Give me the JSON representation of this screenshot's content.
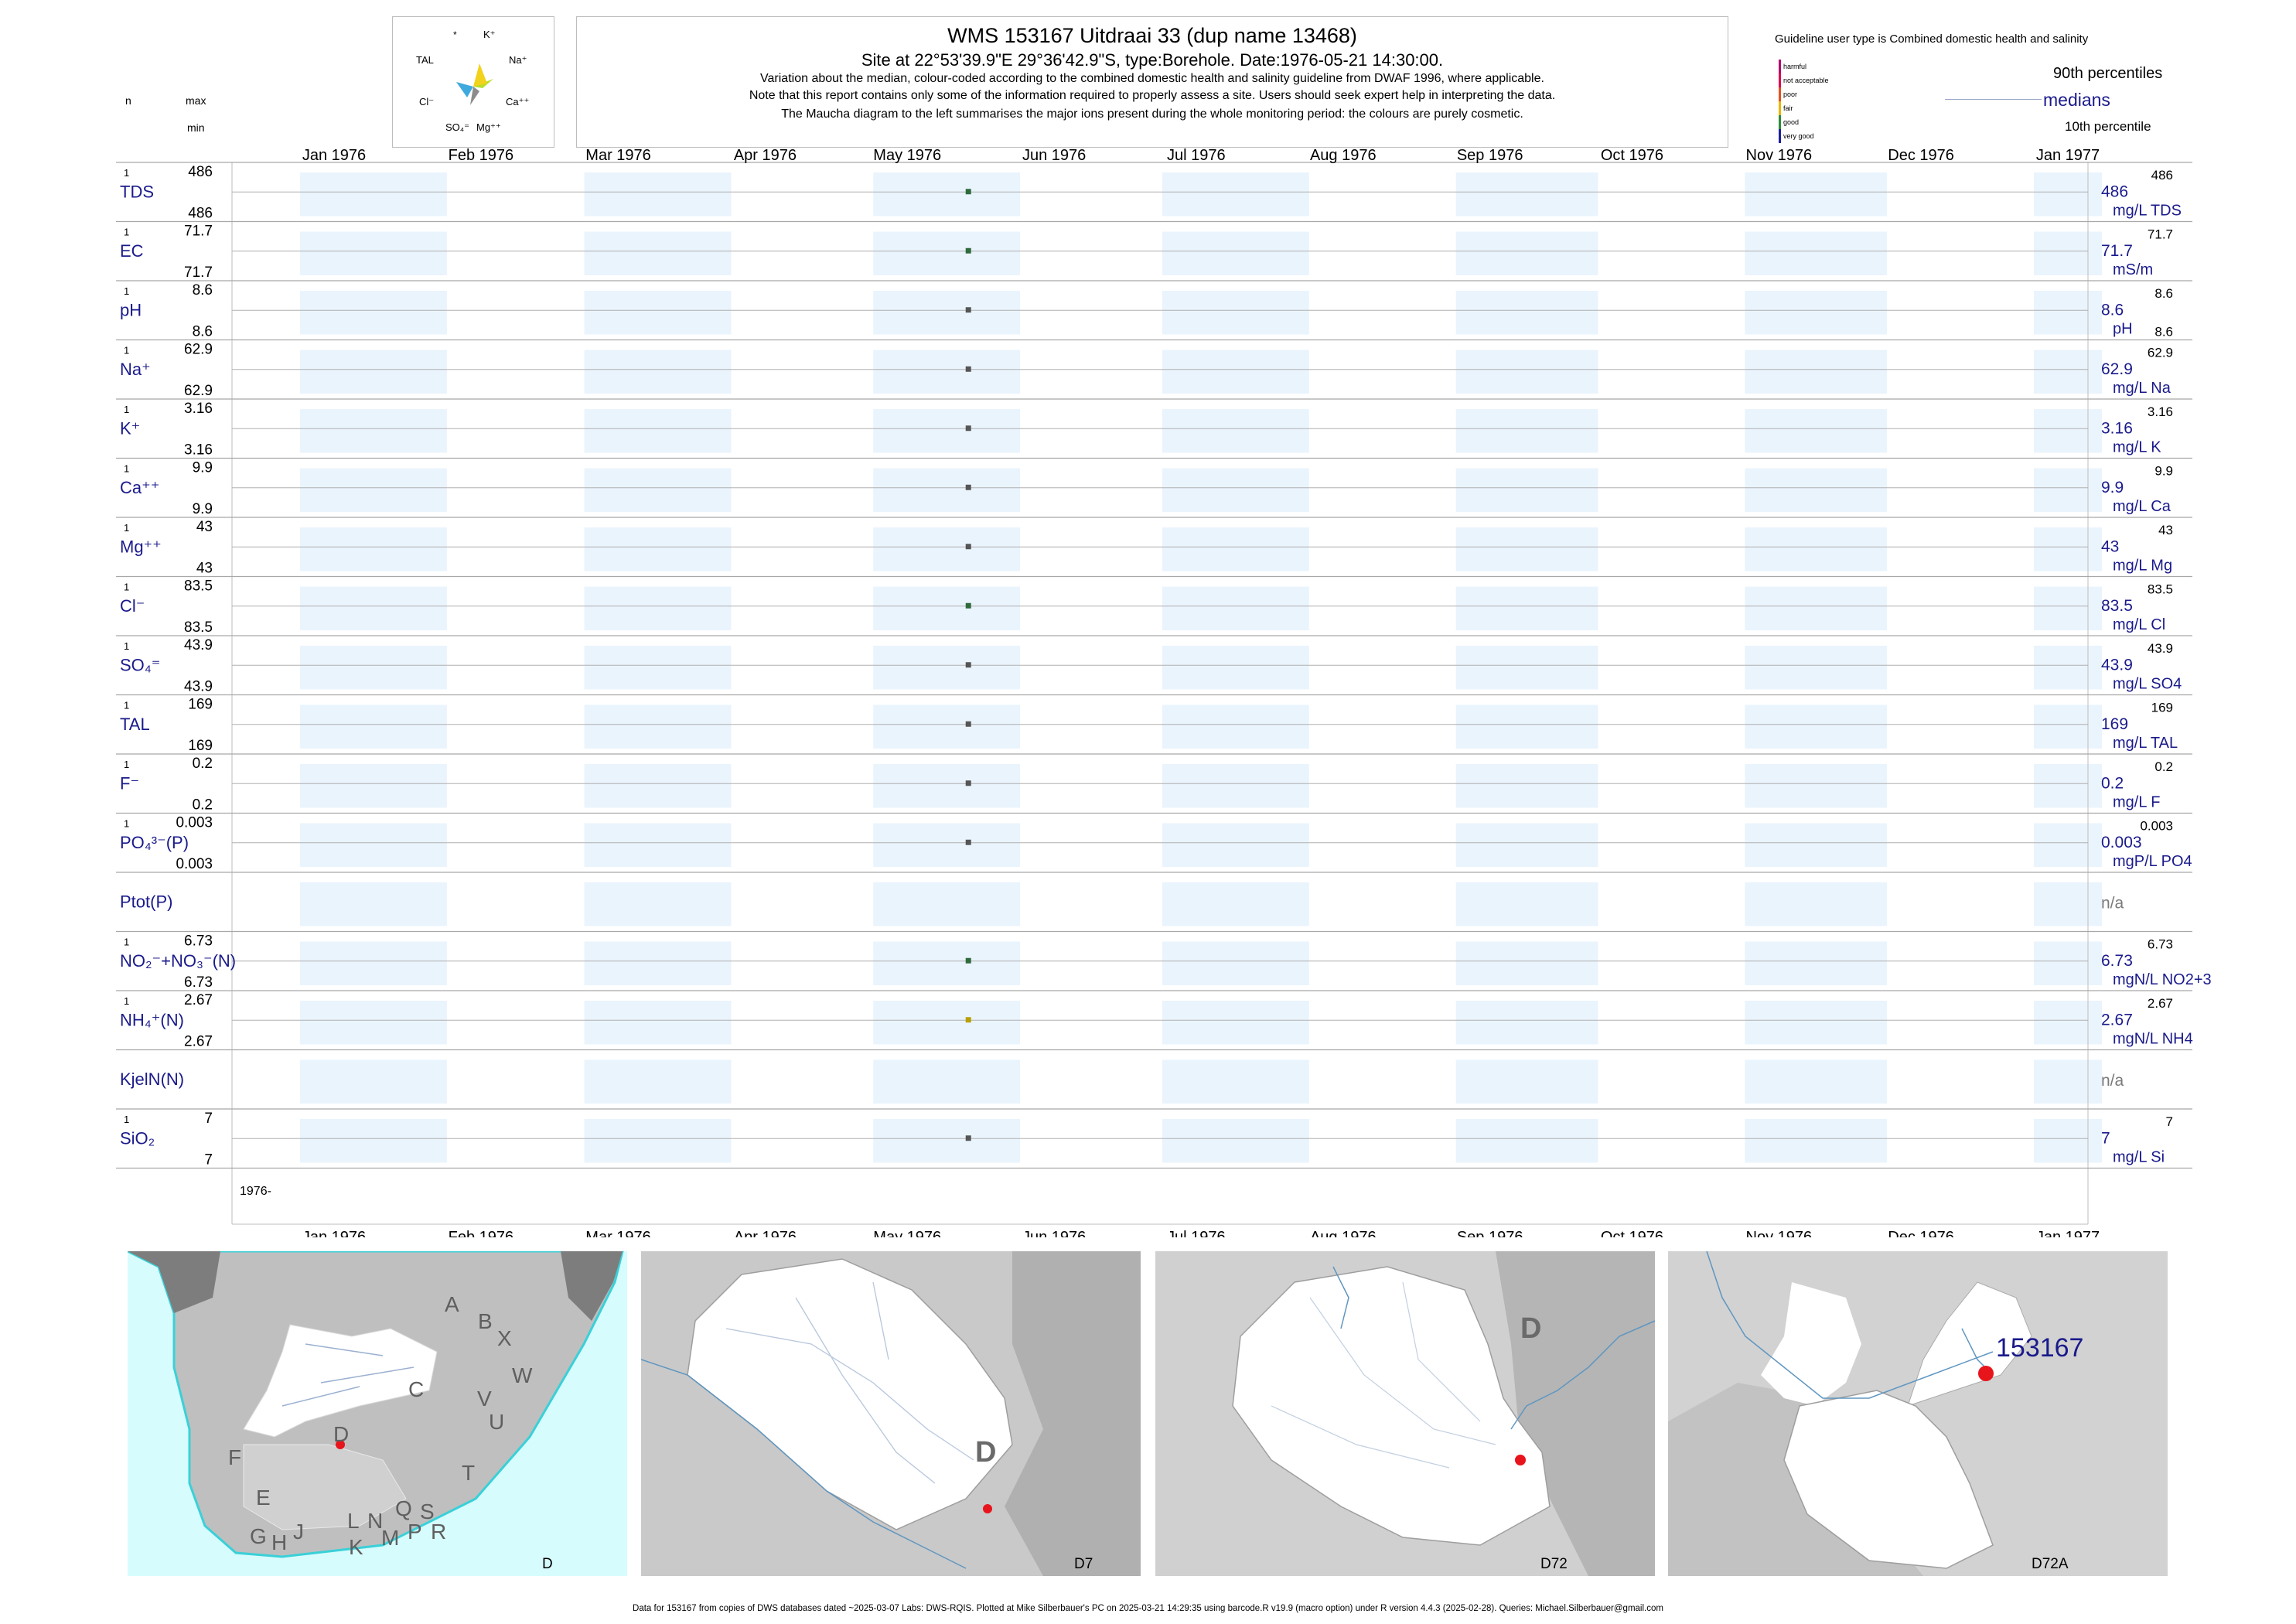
{
  "title": {
    "line1": "WMS 153167  Uitdraai 33 (dup name 13468)",
    "line2": "Site at 22°53'39.9\"E 29°36'42.9\"S, type:Borehole. Date:1976-05-21 14:30:00.",
    "line3": "Variation about the median,  colour-coded according to the combined domestic health and salinity guideline from DWAF 1996, where applicable.",
    "line4": "Note that this report contains only some of the information required to properly assess a site. Users should seek expert help in interpreting the data.",
    "line5": "The Maucha diagram to the left summarises the major ions present during the whole monitoring period: the colours are purely cosmetic."
  },
  "maucha": {
    "labels": [
      "*",
      "K⁺",
      "Na⁺",
      "Ca⁺⁺",
      "Mg⁺⁺",
      "SO₄⁼",
      "Cl⁻",
      "TAL"
    ],
    "colors": [
      "#3fa9dd",
      "#b6e02b",
      "#f2d21a",
      "#8c8c8c",
      "#66e0e0"
    ]
  },
  "left_header": {
    "n": "n",
    "max": "max",
    "min": "min"
  },
  "legend": {
    "title": "Guideline user type is Combined domestic health and salinity",
    "categories": [
      {
        "label": "harmful",
        "color": "#b5006e"
      },
      {
        "label": "not acceptable",
        "color": "#e0004e"
      },
      {
        "label": "poor",
        "color": "#e8501c"
      },
      {
        "label": "fair",
        "color": "#e8b800"
      },
      {
        "label": "good",
        "color": "#2e8b3c"
      },
      {
        "label": "very good",
        "color": "#1d1e9c"
      }
    ],
    "p90": "90th percentiles",
    "medians": "medians",
    "p10": "10th percentile"
  },
  "chart_data": {
    "type": "scatter",
    "x_axis": {
      "ticks": [
        "Jan 1976",
        "Feb 1976",
        "Mar 1976",
        "Apr 1976",
        "May 1976",
        "Jun 1976",
        "Jul 1976",
        "Aug 1976",
        "Sep 1976",
        "Oct 1976",
        "Nov 1976",
        "Dec 1976",
        "Jan 1977"
      ],
      "range": [
        "1976-01-01",
        "1977-01-01"
      ],
      "bottom_label": "1976-"
    },
    "sample_date": "1976-05-21",
    "variables": [
      {
        "name": "TDS",
        "n": "1",
        "max": "486",
        "min": "486",
        "value": 486,
        "median": "486",
        "p90": "486",
        "unit": "mg/L TDS",
        "color": "#2e6b3c"
      },
      {
        "name": "EC",
        "n": "1",
        "max": "71.7",
        "min": "71.7",
        "value": 71.7,
        "median": "71.7",
        "p90": "71.7",
        "unit": "mS/m",
        "color": "#2e6b3c"
      },
      {
        "name": "pH",
        "n": "1",
        "max": "8.6",
        "min": "8.6",
        "value": 8.6,
        "median": "8.6",
        "p90": "8.6",
        "p10": "8.6",
        "unit": "pH",
        "color": "#555555"
      },
      {
        "name": "Na⁺",
        "n": "1",
        "max": "62.9",
        "min": "62.9",
        "value": 62.9,
        "median": "62.9",
        "p90": "62.9",
        "unit": "mg/L Na",
        "color": "#555555"
      },
      {
        "name": "K⁺",
        "n": "1",
        "max": "3.16",
        "min": "3.16",
        "value": 3.16,
        "median": "3.16",
        "p90": "3.16",
        "unit": "mg/L K",
        "color": "#555555"
      },
      {
        "name": "Ca⁺⁺",
        "n": "1",
        "max": "9.9",
        "min": "9.9",
        "value": 9.9,
        "median": "9.9",
        "p90": "9.9",
        "unit": "mg/L Ca",
        "color": "#555555"
      },
      {
        "name": "Mg⁺⁺",
        "n": "1",
        "max": "43",
        "min": "43",
        "value": 43,
        "median": "43",
        "p90": "43",
        "unit": "mg/L Mg",
        "color": "#555555"
      },
      {
        "name": "Cl⁻",
        "n": "1",
        "max": "83.5",
        "min": "83.5",
        "value": 83.5,
        "median": "83.5",
        "p90": "83.5",
        "unit": "mg/L Cl",
        "color": "#2e6b3c"
      },
      {
        "name": "SO₄⁼",
        "n": "1",
        "max": "43.9",
        "min": "43.9",
        "value": 43.9,
        "median": "43.9",
        "p90": "43.9",
        "unit": "mg/L SO4",
        "color": "#555555"
      },
      {
        "name": "TAL",
        "n": "1",
        "max": "169",
        "min": "169",
        "value": 169,
        "median": "169",
        "p90": "169",
        "unit": "mg/L TAL",
        "color": "#555555"
      },
      {
        "name": "F⁻",
        "n": "1",
        "max": "0.2",
        "min": "0.2",
        "value": 0.2,
        "median": "0.2",
        "p90": "0.2",
        "unit": "mg/L F",
        "color": "#555555"
      },
      {
        "name": "PO₄³⁻(P)",
        "n": "1",
        "max": "0.003",
        "min": "0.003",
        "value": 0.003,
        "median": "0.003",
        "p90": "0.003",
        "unit": "mgP/L PO4",
        "color": "#555555"
      },
      {
        "name": "Ptot(P)",
        "n": "",
        "max": "",
        "min": "",
        "value": null,
        "median": "n/a",
        "p90": "",
        "unit": "",
        "color": "#555555"
      },
      {
        "name": "NO₂⁻+NO₃⁻(N)",
        "n": "1",
        "max": "6.73",
        "min": "6.73",
        "value": 6.73,
        "median": "6.73",
        "p90": "6.73",
        "unit": "mgN/L NO2+3",
        "color": "#2e6b3c"
      },
      {
        "name": "NH₄⁺(N)",
        "n": "1",
        "max": "2.67",
        "min": "2.67",
        "value": 2.67,
        "median": "2.67",
        "p90": "2.67",
        "unit": "mgN/L NH4",
        "color": "#b8a000"
      },
      {
        "name": "KjelN(N)",
        "n": "",
        "max": "",
        "min": "",
        "value": null,
        "median": "n/a",
        "p90": "",
        "unit": "",
        "color": "#555555"
      },
      {
        "name": "SiO₂",
        "n": "1",
        "max": "7",
        "min": "7",
        "value": 7,
        "median": "7",
        "p90": "7",
        "unit": "mg/L Si",
        "color": "#555555"
      }
    ]
  },
  "maps": {
    "map1": {
      "labels": [
        "A",
        "B",
        "X",
        "W",
        "C",
        "V",
        "U",
        "T",
        "D",
        "F",
        "E",
        "G",
        "H",
        "J",
        "K",
        "L",
        "N",
        "M",
        "Q",
        "P",
        "S",
        "R"
      ],
      "caption": "D"
    },
    "map2": {
      "label": "D",
      "caption": "D7"
    },
    "map3": {
      "label": "D",
      "caption": "D72"
    },
    "map4": {
      "site": "153167",
      "caption": "D72A"
    }
  },
  "footer": "Data for 153167 from copies of DWS databases dated ~2025-03-07 Labs: DWS-RQIS. Plotted at Mike Silberbauer's PC on 2025-03-21 14:29:35 using barcode.R v19.9 (macro option) under R version 4.4.3 (2025-02-28). Queries: Michael.Silberbauer@gmail.com"
}
